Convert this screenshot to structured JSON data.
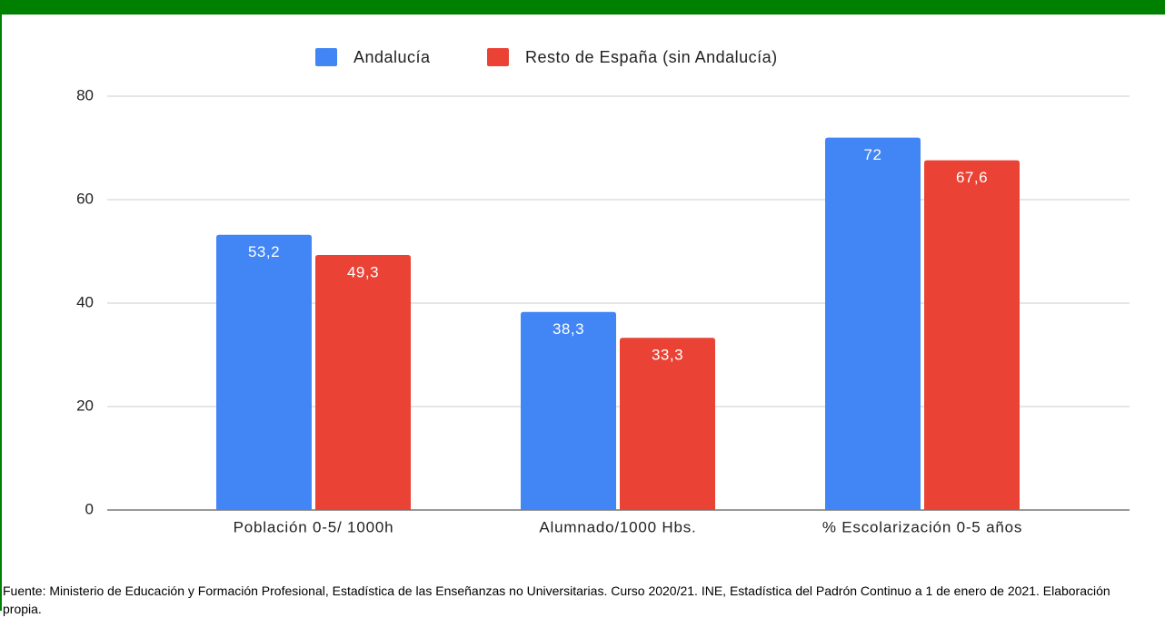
{
  "chart_data": {
    "type": "bar",
    "categories": [
      "Población 0-5/ 1000h",
      "Alumnado/1000 Hbs.",
      "% Escolarización 0-5 años"
    ],
    "series": [
      {
        "name": "Andalucía",
        "color": "#4285f4",
        "values": [
          53.2,
          38.3,
          72
        ],
        "value_labels": [
          "53,2",
          "38,3",
          "72"
        ]
      },
      {
        "name": "Resto de España (sin Andalucía)",
        "color": "#ea4335",
        "values": [
          49.3,
          33.3,
          67.6
        ],
        "value_labels": [
          "49,3",
          "33,3",
          "67,6"
        ]
      }
    ],
    "ylim": [
      0,
      80
    ],
    "yticks": [
      0,
      20,
      40,
      60,
      80
    ],
    "grid": true,
    "legend": "top",
    "note": "Fuente: Ministerio de Educación y Formación Profesional, Estadística de las Enseñanzas no Universitarias. Curso 2020/21. INE, Estadística del Padrón Continuo a 1 de enero de 2021. Elaboración propia."
  }
}
